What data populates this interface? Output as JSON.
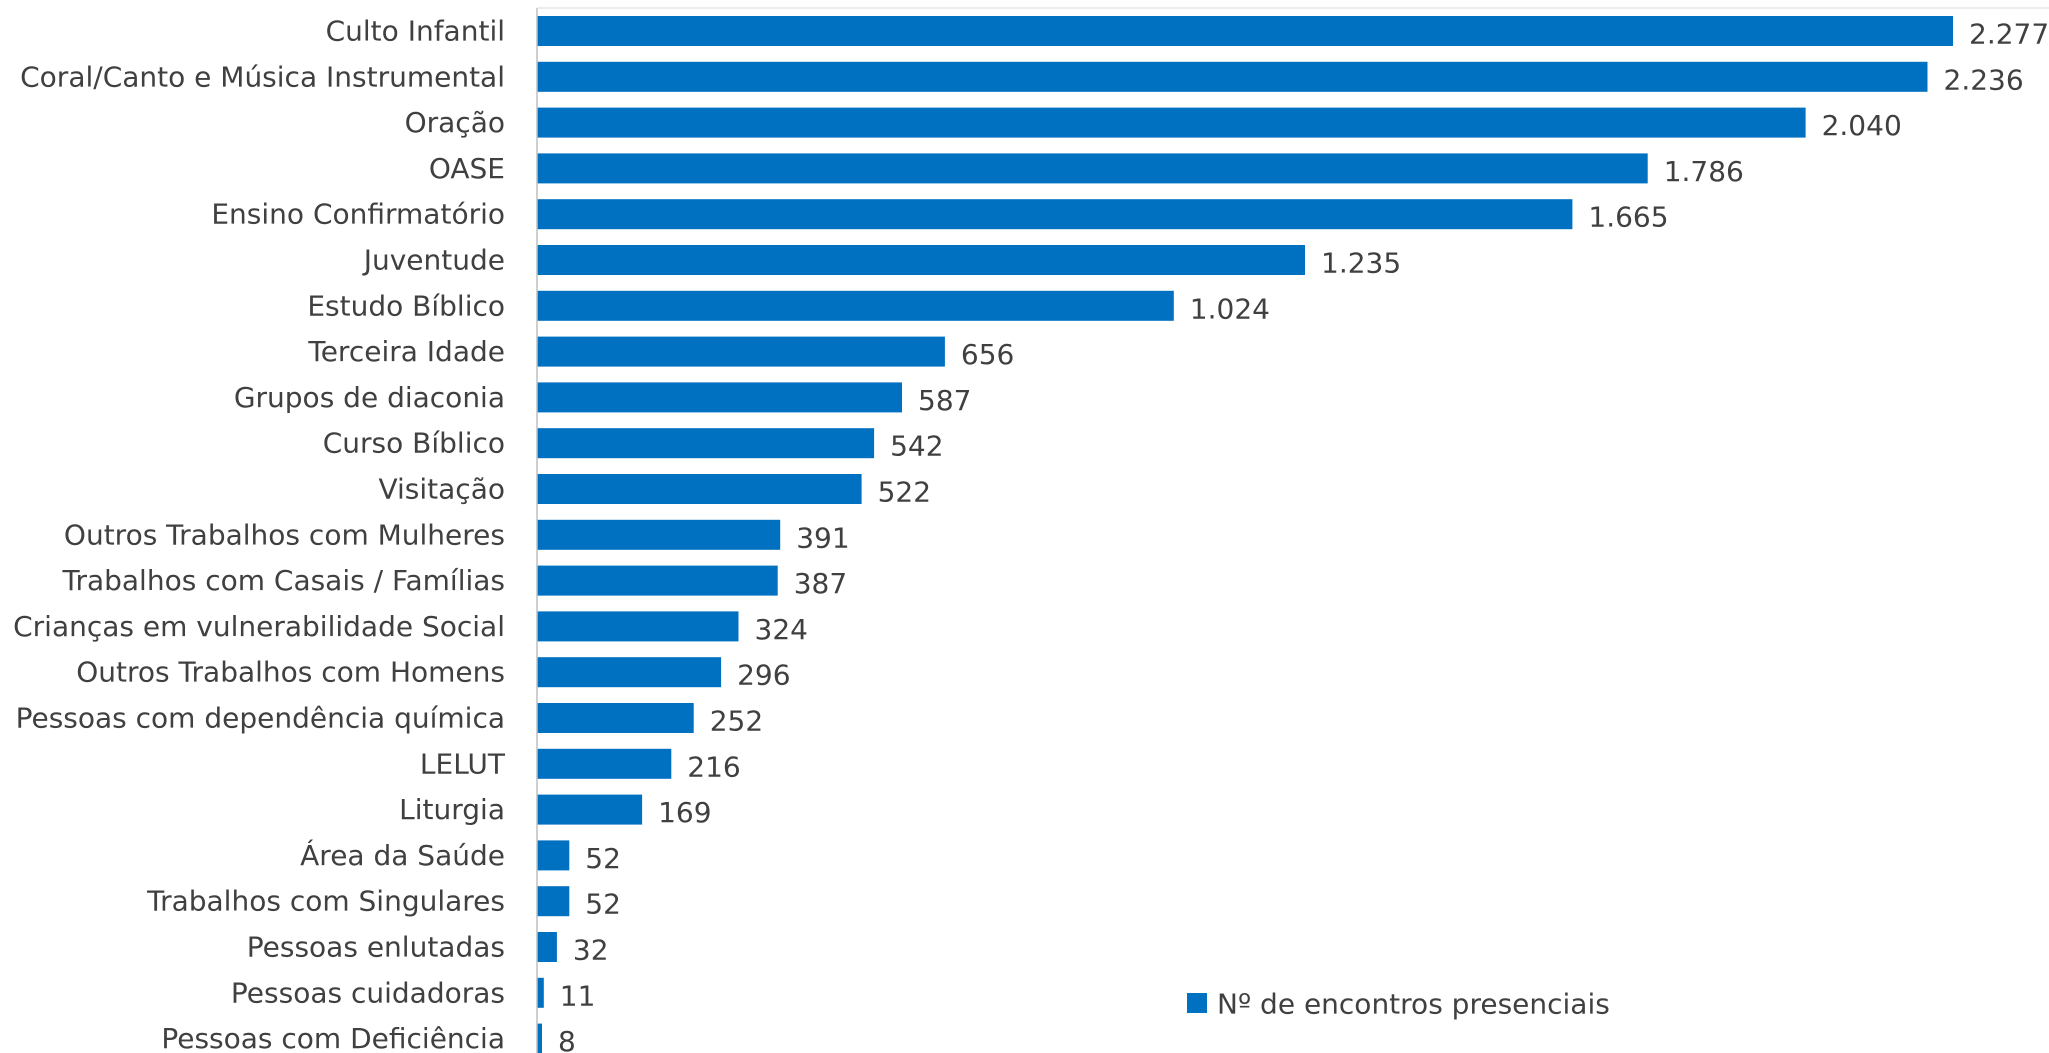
{
  "chart_data": {
    "type": "bar",
    "orientation": "horizontal",
    "categories": [
      "Culto Infantil",
      "Coral/Canto e Música Instrumental",
      "Oração",
      "OASE",
      "Ensino Confirmatório",
      "Juventude",
      "Estudo Bíblico",
      "Terceira Idade",
      "Grupos de diaconia",
      "Curso Bíblico",
      "Visitação",
      "Outros Trabalhos com Mulheres",
      "Trabalhos com Casais / Famílias",
      "Crianças em vulnerabilidade Social",
      "Outros Trabalhos com Homens",
      "Pessoas com dependência química",
      "LELUT",
      "Liturgia",
      "Área da Saúde",
      "Trabalhos com Singulares",
      "Pessoas enlutadas",
      "Pessoas cuidadoras",
      "Pessoas com Deficiência"
    ],
    "values": [
      2277,
      2236,
      2040,
      1786,
      1665,
      1235,
      1024,
      656,
      587,
      542,
      522,
      391,
      387,
      324,
      296,
      252,
      216,
      169,
      52,
      52,
      32,
      11,
      8
    ],
    "value_labels": [
      "2.277",
      "2.236",
      "2.040",
      "1.786",
      "1.665",
      "1.235",
      "1.024",
      "656",
      "587",
      "542",
      "522",
      "391",
      "387",
      "324",
      "296",
      "252",
      "216",
      "169",
      "52",
      "52",
      "32",
      "11",
      "8"
    ],
    "series": [
      {
        "name": "Nº de encontros presenciais"
      }
    ],
    "title": "",
    "xlabel": "",
    "ylabel": "",
    "legend_position": "bottom-right",
    "grid": false,
    "bar_color": "#0070C0",
    "text_color": "#404040",
    "axis_color": "#BFBFBF"
  }
}
